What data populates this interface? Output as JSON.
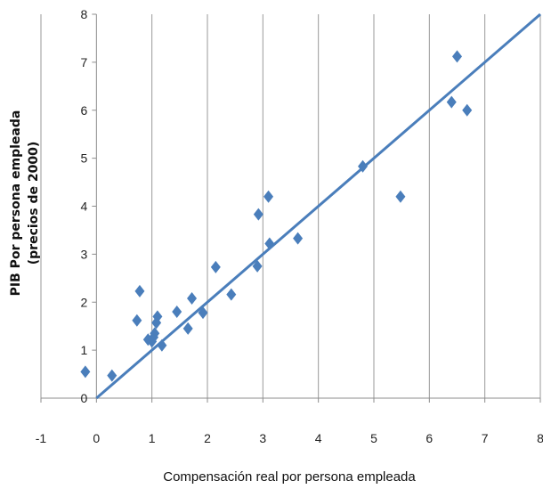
{
  "chart_data": {
    "type": "scatter",
    "title": "",
    "xlabel": "Compensación real por persona empleada",
    "ylabel_lines": [
      "PIB Por persona empleada",
      "(precios de 2000)"
    ],
    "xlim": [
      -1,
      8
    ],
    "ylim": [
      0,
      8
    ],
    "xticks": [
      "-1",
      "0",
      "1",
      "2",
      "3",
      "4",
      "5",
      "6",
      "7",
      "8"
    ],
    "yticks": [
      "0",
      "1",
      "2",
      "3",
      "4",
      "5",
      "6",
      "7",
      "8"
    ],
    "grid": "vertical",
    "legend": "none",
    "series": [
      {
        "marker": "diamond",
        "color": "#4A7EBB",
        "points": [
          [
            -0.2,
            0.55
          ],
          [
            0.28,
            0.47
          ],
          [
            0.73,
            1.62
          ],
          [
            0.78,
            2.23
          ],
          [
            0.93,
            1.22
          ],
          [
            1.0,
            1.18
          ],
          [
            1.03,
            1.27
          ],
          [
            1.05,
            1.35
          ],
          [
            1.08,
            1.57
          ],
          [
            1.1,
            1.7
          ],
          [
            1.18,
            1.1
          ],
          [
            1.45,
            1.8
          ],
          [
            1.65,
            1.45
          ],
          [
            1.72,
            2.08
          ],
          [
            1.92,
            1.78
          ],
          [
            2.15,
            2.73
          ],
          [
            2.43,
            2.16
          ],
          [
            2.9,
            2.75
          ],
          [
            2.92,
            3.83
          ],
          [
            3.1,
            4.2
          ],
          [
            3.12,
            3.22
          ],
          [
            3.63,
            3.33
          ],
          [
            4.8,
            4.83
          ],
          [
            5.48,
            4.2
          ],
          [
            6.4,
            6.17
          ],
          [
            6.5,
            7.12
          ],
          [
            6.68,
            6.0
          ]
        ]
      }
    ],
    "trendline": {
      "type": "linear",
      "color": "#4A7EBB",
      "from": [
        0,
        0
      ],
      "to": [
        8,
        8
      ]
    }
  }
}
